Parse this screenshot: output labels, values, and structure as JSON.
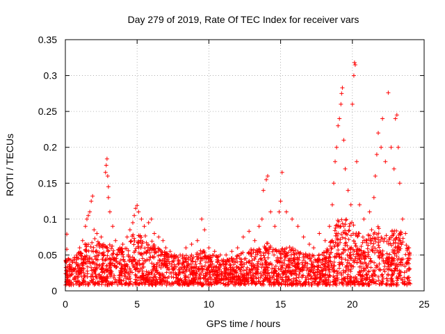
{
  "chart_data": {
    "type": "scatter",
    "title": "Day 279 of 2019, Rate Of TEC Index for receiver vars",
    "xlabel": "GPS time / hours",
    "ylabel": "ROTI / TECUs",
    "xlim": [
      0,
      25
    ],
    "ylim": [
      0,
      0.35
    ],
    "xticks": [
      0,
      5,
      10,
      15,
      20,
      25
    ],
    "xtick_labels": [
      "0",
      "5",
      "10",
      "15",
      "20",
      "25"
    ],
    "yticks": [
      0,
      0.05,
      0.1,
      0.15,
      0.2,
      0.25,
      0.3,
      0.35
    ],
    "ytick_labels": [
      "0",
      "0.05",
      "0.1",
      "0.15",
      "0.2",
      "0.25",
      "0.3",
      "0.35"
    ],
    "grid": true,
    "marker": "+",
    "series": [
      {
        "name": "ROTI",
        "color": "#ff0000",
        "points": [
          [
            0.1,
            0.079
          ],
          [
            0.1,
            0.058
          ],
          [
            0.2,
            0.045
          ],
          [
            0.3,
            0.03
          ],
          [
            0.5,
            0.04
          ],
          [
            0.8,
            0.05
          ],
          [
            1.0,
            0.06
          ],
          [
            1.2,
            0.07
          ],
          [
            1.4,
            0.09
          ],
          [
            1.5,
            0.1
          ],
          [
            1.6,
            0.105
          ],
          [
            1.7,
            0.11
          ],
          [
            1.8,
            0.125
          ],
          [
            1.9,
            0.132
          ],
          [
            2.0,
            0.085
          ],
          [
            2.2,
            0.08
          ],
          [
            2.5,
            0.075
          ],
          [
            2.8,
            0.165
          ],
          [
            2.85,
            0.175
          ],
          [
            2.9,
            0.184
          ],
          [
            2.95,
            0.16
          ],
          [
            3.0,
            0.145
          ],
          [
            3.0,
            0.13
          ],
          [
            3.1,
            0.11
          ],
          [
            3.3,
            0.09
          ],
          [
            3.5,
            0.07
          ],
          [
            3.8,
            0.06
          ],
          [
            4.0,
            0.065
          ],
          [
            4.3,
            0.075
          ],
          [
            4.5,
            0.085
          ],
          [
            4.7,
            0.095
          ],
          [
            4.8,
            0.105
          ],
          [
            4.9,
            0.115
          ],
          [
            5.0,
            0.119
          ],
          [
            5.1,
            0.11
          ],
          [
            5.3,
            0.1
          ],
          [
            5.5,
            0.09
          ],
          [
            5.8,
            0.095
          ],
          [
            6.0,
            0.1
          ],
          [
            6.2,
            0.08
          ],
          [
            6.5,
            0.075
          ],
          [
            6.8,
            0.07
          ],
          [
            7.0,
            0.06
          ],
          [
            7.3,
            0.055
          ],
          [
            7.6,
            0.05
          ],
          [
            8.0,
            0.05
          ],
          [
            8.4,
            0.06
          ],
          [
            8.8,
            0.065
          ],
          [
            9.2,
            0.07
          ],
          [
            9.5,
            0.1
          ],
          [
            9.7,
            0.085
          ],
          [
            10.0,
            0.06
          ],
          [
            10.4,
            0.055
          ],
          [
            10.8,
            0.05
          ],
          [
            11.2,
            0.05
          ],
          [
            11.6,
            0.055
          ],
          [
            12.0,
            0.06
          ],
          [
            12.4,
            0.075
          ],
          [
            12.8,
            0.083
          ],
          [
            13.2,
            0.07
          ],
          [
            13.5,
            0.09
          ],
          [
            13.7,
            0.1
          ],
          [
            13.8,
            0.14
          ],
          [
            14.0,
            0.155
          ],
          [
            14.1,
            0.16
          ],
          [
            14.3,
            0.11
          ],
          [
            14.6,
            0.09
          ],
          [
            14.9,
            0.11
          ],
          [
            15.0,
            0.125
          ],
          [
            15.1,
            0.165
          ],
          [
            15.4,
            0.11
          ],
          [
            15.8,
            0.1
          ],
          [
            16.2,
            0.09
          ],
          [
            16.6,
            0.075
          ],
          [
            17.0,
            0.065
          ],
          [
            17.3,
            0.06
          ],
          [
            17.7,
            0.08
          ],
          [
            18.1,
            0.07
          ],
          [
            18.4,
            0.09
          ],
          [
            18.6,
            0.12
          ],
          [
            18.7,
            0.15
          ],
          [
            18.8,
            0.18
          ],
          [
            18.9,
            0.2
          ],
          [
            19.0,
            0.23
          ],
          [
            19.1,
            0.24
          ],
          [
            19.2,
            0.26
          ],
          [
            19.25,
            0.275
          ],
          [
            19.3,
            0.283
          ],
          [
            19.4,
            0.21
          ],
          [
            19.5,
            0.17
          ],
          [
            19.7,
            0.14
          ],
          [
            19.9,
            0.12
          ],
          [
            20.0,
            0.26
          ],
          [
            20.1,
            0.3
          ],
          [
            20.15,
            0.318
          ],
          [
            20.2,
            0.315
          ],
          [
            20.3,
            0.18
          ],
          [
            20.5,
            0.12
          ],
          [
            20.8,
            0.1
          ],
          [
            21.2,
            0.11
          ],
          [
            21.5,
            0.13
          ],
          [
            21.6,
            0.16
          ],
          [
            21.7,
            0.19
          ],
          [
            21.8,
            0.22
          ],
          [
            22.0,
            0.2
          ],
          [
            22.1,
            0.24
          ],
          [
            22.3,
            0.18
          ],
          [
            22.5,
            0.276
          ],
          [
            22.7,
            0.2
          ],
          [
            22.9,
            0.17
          ],
          [
            23.0,
            0.24
          ],
          [
            23.1,
            0.245
          ],
          [
            23.2,
            0.2
          ],
          [
            23.3,
            0.15
          ],
          [
            23.5,
            0.1
          ],
          [
            23.7,
            0.08
          ],
          [
            23.9,
            0.06
          ],
          [
            24.0,
            0.05
          ]
        ]
      }
    ],
    "density_envelope": {
      "hours": [
        0,
        0.5,
        1,
        1.5,
        2,
        2.5,
        3,
        3.5,
        4,
        4.5,
        5,
        5.5,
        6,
        6.5,
        7,
        7.5,
        8,
        8.5,
        9,
        9.5,
        10,
        10.5,
        11,
        11.5,
        12,
        12.5,
        13,
        13.5,
        14,
        14.5,
        15,
        15.5,
        16,
        16.5,
        17,
        17.5,
        18,
        18.5,
        19,
        19.5,
        20,
        20.5,
        21,
        21.5,
        22,
        22.5,
        23,
        23.5,
        24
      ],
      "typical_max": [
        0.045,
        0.045,
        0.055,
        0.07,
        0.075,
        0.065,
        0.07,
        0.06,
        0.06,
        0.07,
        0.09,
        0.08,
        0.07,
        0.06,
        0.055,
        0.05,
        0.05,
        0.05,
        0.05,
        0.06,
        0.05,
        0.05,
        0.045,
        0.045,
        0.05,
        0.055,
        0.06,
        0.06,
        0.07,
        0.06,
        0.06,
        0.065,
        0.06,
        0.055,
        0.05,
        0.05,
        0.055,
        0.07,
        0.1,
        0.1,
        0.1,
        0.08,
        0.075,
        0.09,
        0.09,
        0.08,
        0.09,
        0.08,
        0.06
      ]
    }
  }
}
